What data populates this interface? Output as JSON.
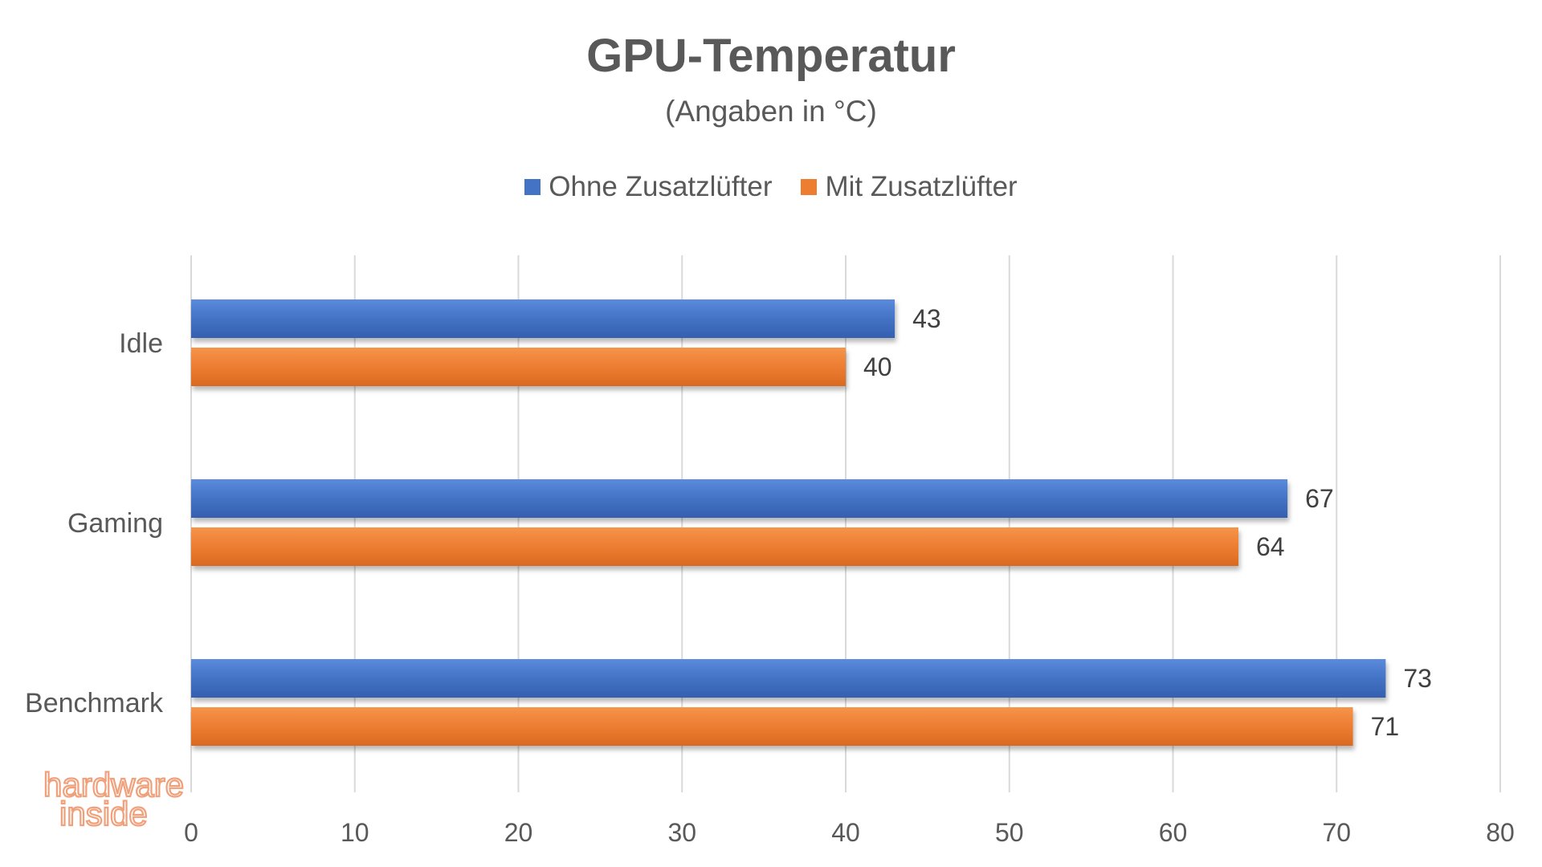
{
  "chart_data": {
    "type": "bar",
    "orientation": "horizontal",
    "title": "GPU-Temperatur",
    "subtitle": "(Angaben in °C)",
    "categories": [
      "Idle",
      "Gaming",
      "Benchmark"
    ],
    "series": [
      {
        "name": "Ohne Zusatzlüfter",
        "values": [
          43,
          67,
          73
        ],
        "color": "#4472C4"
      },
      {
        "name": "Mit Zusatzlüfter",
        "values": [
          40,
          64,
          71
        ],
        "color": "#ED7D31"
      }
    ],
    "xlim": [
      0,
      80
    ],
    "x_ticks": [
      0,
      10,
      20,
      30,
      40,
      50,
      60,
      70,
      80
    ],
    "grid": "vertical",
    "legend_position": "top",
    "data_labels": true
  },
  "watermark": {
    "line1": "hardware",
    "line2": "inside",
    "colors": {
      "orange": "#F0A07A",
      "blue": "#A9B8E0"
    }
  }
}
